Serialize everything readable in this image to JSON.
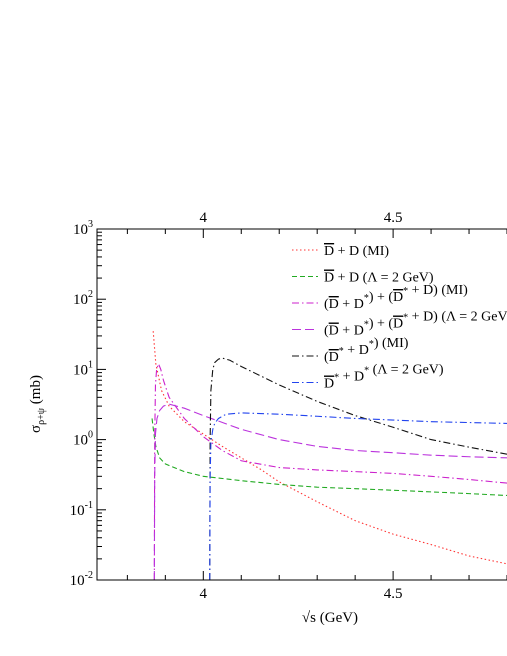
{
  "chart_data": {
    "type": "line",
    "xlabel": "√s  (GeV)",
    "ylabel": "σ",
    "ylabel_sub": "ρ+ψ",
    "ylabel_unit": "(mb)",
    "xlim": [
      3.72,
      4.8
    ],
    "ylim": [
      0.01,
      1000
    ],
    "yscale": "log",
    "x_ticks": [
      {
        "value": 4,
        "label": "4"
      },
      {
        "value": 4.5,
        "label": "4.5"
      }
    ],
    "x_ticks_top": [
      {
        "value": 4,
        "label": "4"
      },
      {
        "value": 4.5,
        "label": "4.5"
      }
    ],
    "y_ticks": [
      {
        "value": 0.01,
        "base": "10",
        "exp": "-2"
      },
      {
        "value": 0.1,
        "base": "10",
        "exp": "-1"
      },
      {
        "value": 1,
        "base": "10",
        "exp": "0"
      },
      {
        "value": 10,
        "base": "10",
        "exp": "1"
      },
      {
        "value": 100,
        "base": "10",
        "exp": "2"
      },
      {
        "value": 1000,
        "base": "10",
        "exp": "3"
      }
    ],
    "legend_position": "top-right",
    "series": [
      {
        "id": "dd-mi",
        "color": "#ff3333",
        "dash": "1.5,2.5",
        "legend": [
          {
            "t": "D",
            "bar": true
          },
          {
            "t": " + D (MI)"
          }
        ],
        "x": [
          3.868,
          3.875,
          3.89,
          3.91,
          3.95,
          4.0,
          4.05,
          4.1,
          4.15,
          4.2,
          4.3,
          4.4,
          4.5,
          4.6,
          4.7,
          4.8
        ],
        "y": [
          35,
          12,
          5,
          3,
          1.8,
          1.2,
          0.8,
          0.55,
          0.38,
          0.25,
          0.13,
          0.07,
          0.045,
          0.032,
          0.022,
          0.017
        ]
      },
      {
        "id": "dd-lambda",
        "color": "#22aa22",
        "dash": "5,3",
        "legend": [
          {
            "t": "D",
            "bar": true
          },
          {
            "t": " + D (Λ = 2 GeV)"
          }
        ],
        "x": [
          3.865,
          3.87,
          3.875,
          3.885,
          3.9,
          3.95,
          4.0,
          4.1,
          4.2,
          4.3,
          4.4,
          4.5,
          4.6,
          4.7,
          4.8
        ],
        "y": [
          2.0,
          1.2,
          0.8,
          0.55,
          0.45,
          0.35,
          0.3,
          0.26,
          0.23,
          0.21,
          0.2,
          0.19,
          0.18,
          0.17,
          0.16
        ]
      },
      {
        "id": "dds-mi",
        "color": "#cc22cc",
        "dash": "7,3,1.5,3",
        "legend": [
          {
            "t": "("
          },
          {
            "t": "D",
            "bar": true
          },
          {
            "t": " + D"
          },
          {
            "t": "*",
            "sup": true
          },
          {
            "t": ") + ("
          },
          {
            "t": "D",
            "bar": true
          },
          {
            "t": "*",
            "sup": true
          },
          {
            "t": " + D) (MI)"
          }
        ],
        "x": [
          3.871,
          3.8715,
          3.872,
          3.874,
          3.877,
          3.882,
          3.888,
          3.895,
          3.91,
          3.95,
          4.0,
          4.05,
          4.1,
          4.2,
          4.3,
          4.4,
          4.5,
          4.6,
          4.7,
          4.8
        ],
        "y": [
          0.01,
          0.1,
          1,
          6,
          10,
          12,
          10,
          7,
          4,
          2,
          1.1,
          0.7,
          0.5,
          0.4,
          0.37,
          0.35,
          0.33,
          0.3,
          0.27,
          0.24
        ]
      },
      {
        "id": "dds-lambda",
        "color": "#bb33dd",
        "dash": "9,4",
        "legend": [
          {
            "t": "("
          },
          {
            "t": "D",
            "bar": true
          },
          {
            "t": " + D"
          },
          {
            "t": "*",
            "sup": true
          },
          {
            "t": ") + ("
          },
          {
            "t": "D",
            "bar": true
          },
          {
            "t": "*",
            "sup": true
          },
          {
            "t": " + D) (Λ = 2 GeV)"
          }
        ],
        "x": [
          3.871,
          3.872,
          3.874,
          3.878,
          3.885,
          3.895,
          3.91,
          3.95,
          4.0,
          4.1,
          4.2,
          4.3,
          4.4,
          4.5,
          4.6,
          4.7,
          4.8
        ],
        "y": [
          0.01,
          0.3,
          1.2,
          2.0,
          2.6,
          3.0,
          3.2,
          2.8,
          2.2,
          1.4,
          1.0,
          0.8,
          0.7,
          0.65,
          0.6,
          0.57,
          0.55
        ]
      },
      {
        "id": "dsds-mi",
        "color": "#111111",
        "dash": "7,3,1.5,3",
        "legend": [
          {
            "t": "("
          },
          {
            "t": "D",
            "bar": true
          },
          {
            "t": "*",
            "sup": true
          },
          {
            "t": " + D"
          },
          {
            "t": "*",
            "sup": true
          },
          {
            "t": ") (MI)"
          }
        ],
        "x": [
          4.017,
          4.0175,
          4.018,
          4.02,
          4.025,
          4.03,
          4.04,
          4.05,
          4.07,
          4.1,
          4.2,
          4.3,
          4.4,
          4.5,
          4.6,
          4.7,
          4.8
        ],
        "y": [
          0.01,
          0.1,
          1,
          5,
          10,
          12.5,
          14,
          14.5,
          13.5,
          11,
          6,
          3.5,
          2.2,
          1.5,
          1.0,
          0.78,
          0.62
        ]
      },
      {
        "id": "dsds-lambda",
        "color": "#2244ee",
        "dash": "7,3,1.5,3",
        "legend": [
          {
            "t": "D",
            "bar": true
          },
          {
            "t": "*",
            "sup": true
          },
          {
            "t": " + D"
          },
          {
            "t": "*",
            "sup": true
          },
          {
            "t": " (Λ = 2 GeV)"
          }
        ],
        "x": [
          4.017,
          4.018,
          4.02,
          4.025,
          4.03,
          4.04,
          4.06,
          4.1,
          4.2,
          4.3,
          4.4,
          4.5,
          4.6,
          4.7,
          4.8
        ],
        "y": [
          0.01,
          0.3,
          0.9,
          1.4,
          1.7,
          2.0,
          2.3,
          2.4,
          2.3,
          2.15,
          2.0,
          1.9,
          1.8,
          1.75,
          1.7
        ]
      }
    ]
  }
}
